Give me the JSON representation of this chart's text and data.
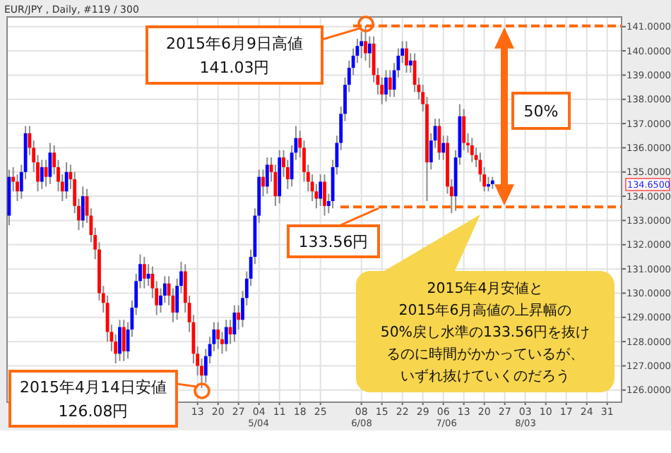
{
  "chart_data": {
    "type": "candlestick",
    "title": "EUR/JPY , Daily, #119 / 300",
    "categories": [
      null,
      null,
      null,
      null,
      null,
      null,
      null,
      null,
      null,
      null,
      null,
      null,
      null,
      null,
      null,
      null,
      null,
      null,
      null,
      null,
      null,
      null,
      null,
      null,
      null,
      null,
      null,
      null,
      null,
      null,
      null,
      null,
      null,
      null,
      null,
      null,
      null,
      null,
      null,
      null,
      null,
      null,
      null,
      null,
      null,
      null,
      "13",
      null,
      null,
      null,
      null,
      "20",
      null,
      null,
      null,
      null,
      "27",
      null,
      null,
      null,
      null,
      "04",
      null,
      null,
      null,
      null,
      "11",
      null,
      null,
      null,
      null,
      "18",
      null,
      null,
      null,
      null,
      "25",
      null,
      null,
      null,
      null,
      null,
      null,
      null,
      null,
      null,
      "08",
      null,
      null,
      null,
      null,
      "15",
      null,
      null,
      null,
      null,
      "22",
      null,
      null,
      null,
      null,
      "29",
      null,
      null,
      null,
      null,
      "06",
      null,
      null,
      null,
      null,
      "13",
      null,
      null,
      null,
      null,
      "20",
      null,
      null,
      null,
      null,
      "27",
      null,
      null,
      null,
      null,
      "03",
      null,
      null,
      null,
      null,
      "10",
      null,
      null,
      null,
      null,
      "17",
      null,
      null,
      null,
      null,
      "24",
      null,
      null,
      null,
      null,
      "31",
      null,
      null,
      null
    ],
    "ohlc": [
      [
        133.2,
        135.1,
        132.8,
        134.8
      ],
      [
        134.8,
        135.2,
        134.2,
        134.6
      ],
      [
        134.6,
        134.9,
        133.8,
        134.2
      ],
      [
        134.2,
        135.3,
        133.9,
        135.0
      ],
      [
        135.0,
        136.9,
        134.7,
        136.6
      ],
      [
        136.6,
        136.9,
        135.7,
        136.0
      ],
      [
        136.0,
        136.3,
        135.0,
        135.4
      ],
      [
        135.4,
        135.7,
        134.2,
        134.6
      ],
      [
        134.6,
        135.5,
        134.3,
        135.2
      ],
      [
        135.2,
        135.5,
        134.4,
        134.8
      ],
      [
        134.8,
        136.2,
        134.5,
        135.8
      ],
      [
        135.8,
        136.1,
        134.9,
        135.2
      ],
      [
        135.2,
        135.5,
        134.2,
        134.6
      ],
      [
        134.6,
        134.9,
        133.8,
        134.2
      ],
      [
        134.2,
        135.4,
        133.9,
        135.0
      ],
      [
        135.0,
        135.3,
        134.3,
        134.7
      ],
      [
        134.7,
        135.0,
        133.3,
        133.6
      ],
      [
        133.6,
        133.9,
        132.6,
        133.0
      ],
      [
        133.0,
        134.4,
        132.7,
        134.0
      ],
      [
        134.0,
        134.3,
        132.9,
        133.2
      ],
      [
        133.2,
        133.5,
        132.1,
        132.4
      ],
      [
        132.4,
        132.7,
        131.4,
        131.8
      ],
      [
        131.8,
        132.1,
        129.7,
        130.0
      ],
      [
        130.0,
        130.3,
        129.2,
        129.6
      ],
      [
        129.6,
        129.9,
        128.0,
        128.4
      ],
      [
        128.4,
        128.7,
        127.6,
        128.0
      ],
      [
        128.0,
        128.3,
        127.1,
        127.5
      ],
      [
        127.5,
        128.9,
        127.2,
        128.6
      ],
      [
        128.6,
        128.9,
        127.2,
        127.6
      ],
      [
        127.6,
        128.8,
        127.3,
        128.5
      ],
      [
        128.5,
        129.7,
        128.2,
        129.4
      ],
      [
        129.4,
        130.8,
        129.1,
        130.5
      ],
      [
        130.5,
        131.6,
        130.2,
        131.2
      ],
      [
        131.2,
        131.5,
        130.2,
        130.6
      ],
      [
        130.6,
        131.2,
        130.3,
        130.8
      ],
      [
        130.8,
        131.1,
        129.8,
        130.2
      ],
      [
        130.2,
        130.5,
        129.1,
        129.5
      ],
      [
        129.5,
        130.2,
        129.2,
        129.9
      ],
      [
        129.9,
        130.7,
        129.6,
        130.4
      ],
      [
        130.4,
        130.7,
        129.5,
        129.9
      ],
      [
        129.9,
        130.2,
        128.8,
        129.2
      ],
      [
        129.2,
        130.6,
        128.9,
        130.3
      ],
      [
        130.3,
        131.3,
        130.0,
        130.9
      ],
      [
        130.9,
        131.2,
        129.2,
        129.6
      ],
      [
        129.6,
        129.9,
        128.4,
        128.8
      ],
      [
        128.8,
        129.1,
        127.1,
        127.5
      ],
      [
        127.5,
        127.8,
        126.6,
        127.0
      ],
      [
        127.0,
        127.3,
        126.08,
        126.6
      ],
      [
        126.6,
        127.7,
        126.3,
        127.4
      ],
      [
        127.4,
        128.2,
        127.1,
        127.9
      ],
      [
        127.9,
        128.8,
        127.6,
        128.5
      ],
      [
        128.5,
        128.8,
        127.7,
        128.1
      ],
      [
        128.1,
        128.4,
        127.5,
        127.9
      ],
      [
        127.9,
        128.9,
        127.6,
        128.6
      ],
      [
        128.6,
        128.9,
        127.9,
        128.3
      ],
      [
        128.3,
        129.5,
        128.0,
        129.2
      ],
      [
        129.2,
        129.5,
        128.5,
        128.9
      ],
      [
        128.9,
        130.1,
        128.6,
        129.8
      ],
      [
        129.8,
        130.9,
        129.5,
        130.6
      ],
      [
        130.6,
        131.8,
        130.3,
        131.5
      ],
      [
        131.5,
        133.5,
        131.2,
        133.2
      ],
      [
        133.2,
        135.1,
        132.9,
        134.8
      ],
      [
        134.8,
        135.1,
        134.0,
        134.4
      ],
      [
        134.4,
        135.6,
        134.1,
        135.3
      ],
      [
        135.3,
        135.6,
        134.6,
        135.0
      ],
      [
        135.0,
        135.3,
        133.6,
        134.0
      ],
      [
        134.0,
        135.9,
        133.7,
        135.6
      ],
      [
        135.6,
        135.9,
        134.8,
        135.2
      ],
      [
        135.2,
        135.5,
        134.3,
        134.7
      ],
      [
        134.7,
        136.1,
        134.4,
        135.8
      ],
      [
        135.8,
        136.9,
        135.5,
        136.4
      ],
      [
        136.4,
        136.7,
        135.6,
        136.0
      ],
      [
        136.0,
        136.3,
        134.6,
        135.0
      ],
      [
        135.0,
        135.3,
        134.2,
        134.6
      ],
      [
        134.6,
        134.9,
        133.8,
        134.2
      ],
      [
        134.2,
        134.5,
        133.5,
        133.9
      ],
      [
        133.9,
        134.9,
        133.6,
        134.6
      ],
      [
        134.6,
        134.9,
        133.2,
        133.6
      ],
      [
        133.6,
        134.1,
        133.3,
        133.8
      ],
      [
        133.8,
        135.5,
        133.5,
        135.2
      ],
      [
        135.2,
        136.5,
        134.9,
        136.2
      ],
      [
        136.2,
        137.7,
        135.9,
        137.4
      ],
      [
        137.4,
        138.9,
        137.1,
        138.6
      ],
      [
        138.6,
        139.6,
        138.3,
        139.3
      ],
      [
        139.3,
        140.1,
        139.0,
        139.8
      ],
      [
        139.8,
        140.5,
        139.5,
        140.2
      ],
      [
        140.2,
        140.8,
        139.7,
        140.4
      ],
      [
        140.4,
        141.03,
        139.6,
        139.9
      ],
      [
        139.9,
        140.6,
        139.3,
        140.3
      ],
      [
        140.3,
        140.6,
        138.7,
        139.0
      ],
      [
        139.0,
        139.3,
        138.2,
        138.6
      ],
      [
        138.6,
        138.9,
        137.8,
        138.2
      ],
      [
        138.2,
        139.2,
        137.9,
        138.9
      ],
      [
        138.9,
        139.2,
        138.1,
        138.4
      ],
      [
        138.4,
        139.5,
        138.1,
        139.2
      ],
      [
        139.2,
        140.1,
        138.9,
        139.8
      ],
      [
        139.8,
        140.4,
        139.5,
        140.1
      ],
      [
        140.1,
        140.4,
        139.1,
        139.4
      ],
      [
        139.4,
        139.9,
        139.1,
        139.6
      ],
      [
        139.6,
        139.9,
        138.3,
        138.6
      ],
      [
        138.6,
        138.9,
        138.0,
        138.3
      ],
      [
        138.3,
        138.6,
        137.5,
        137.8
      ],
      [
        137.8,
        138.1,
        133.8,
        135.4
      ],
      [
        135.4,
        136.6,
        135.1,
        136.3
      ],
      [
        136.3,
        137.2,
        136.0,
        136.9
      ],
      [
        136.9,
        137.2,
        135.5,
        135.8
      ],
      [
        135.8,
        136.5,
        135.5,
        136.2
      ],
      [
        136.2,
        136.5,
        134.1,
        134.4
      ],
      [
        134.4,
        134.7,
        133.3,
        134.0
      ],
      [
        134.0,
        135.9,
        133.4,
        135.6
      ],
      [
        135.6,
        137.8,
        135.3,
        137.3
      ],
      [
        137.3,
        137.6,
        135.9,
        136.2
      ],
      [
        136.2,
        136.6,
        135.8,
        136.1
      ],
      [
        136.1,
        136.4,
        135.4,
        135.7
      ],
      [
        135.7,
        136.0,
        135.2,
        135.5
      ],
      [
        135.5,
        135.8,
        134.6,
        134.9
      ],
      [
        134.9,
        135.2,
        134.2,
        134.4
      ],
      [
        134.4,
        134.8,
        134.2,
        134.5
      ],
      [
        134.5,
        134.8,
        134.3,
        134.65
      ],
      null,
      null,
      null,
      null,
      null,
      null,
      null,
      null,
      null,
      null,
      null,
      null,
      null,
      null,
      null,
      null,
      null,
      null,
      null,
      null,
      null,
      null,
      null,
      null,
      null,
      null,
      null,
      null,
      null,
      null,
      null
    ],
    "colors": [
      "#0000ff",
      "#ff0000",
      "#ff0000",
      "#0000ff",
      "#0000ff",
      "#ff0000",
      "#ff0000",
      "#ff0000",
      "#0000ff",
      "#ff0000",
      "#0000ff",
      "#ff0000",
      "#ff0000",
      "#ff0000",
      "#0000ff",
      "#ff0000",
      "#ff0000",
      "#ff0000",
      "#0000ff",
      "#ff0000",
      "#ff0000",
      "#ff0000",
      "#ff0000",
      "#ff0000",
      "#ff0000",
      "#ff0000",
      "#ff0000",
      "#0000ff",
      "#ff0000",
      "#0000ff",
      "#0000ff",
      "#0000ff",
      "#0000ff",
      "#ff0000",
      "#0000ff",
      "#ff0000",
      "#ff0000",
      "#0000ff",
      "#0000ff",
      "#ff0000",
      "#ff0000",
      "#0000ff",
      "#0000ff",
      "#ff0000",
      "#ff0000",
      "#ff0000",
      "#ff0000",
      "#ff0000",
      "#0000ff",
      "#0000ff",
      "#0000ff",
      "#ff0000",
      "#ff0000",
      "#0000ff",
      "#ff0000",
      "#0000ff",
      "#ff0000",
      "#0000ff",
      "#0000ff",
      "#0000ff",
      "#0000ff",
      "#0000ff",
      "#ff0000",
      "#0000ff",
      "#ff0000",
      "#ff0000",
      "#0000ff",
      "#ff0000",
      "#ff0000",
      "#0000ff",
      "#0000ff",
      "#ff0000",
      "#ff0000",
      "#ff0000",
      "#ff0000",
      "#ff0000",
      "#0000ff",
      "#ff0000",
      "#0000ff",
      "#0000ff",
      "#0000ff",
      "#0000ff",
      "#0000ff",
      "#0000ff",
      "#0000ff",
      "#0000ff",
      "#0000ff",
      "#ff0000",
      "#0000ff",
      "#ff0000",
      "#ff0000",
      "#ff0000",
      "#0000ff",
      "#ff0000",
      "#0000ff",
      "#0000ff",
      "#0000ff",
      "#ff0000",
      "#0000ff",
      "#ff0000",
      "#ff0000",
      "#ff0000",
      "#ff0000",
      "#0000ff",
      "#0000ff",
      "#ff0000",
      "#0000ff",
      "#ff0000",
      "#ff0000",
      "#0000ff",
      "#0000ff",
      "#ff0000",
      "#ff0000",
      "#ff0000",
      "#ff0000",
      "#ff0000",
      "#ff0000",
      "#0000ff",
      "#0000ff",
      null,
      null,
      null,
      null,
      null,
      null,
      null,
      null,
      null,
      null,
      null,
      null,
      null,
      null,
      null,
      null,
      null,
      null,
      null,
      null,
      null,
      null,
      null,
      null,
      null,
      null,
      null,
      null,
      null,
      null,
      null
    ],
    "ylim": [
      125.5,
      141.4
    ],
    "yticks": [
      {
        "value": 126,
        "label": "126.0000"
      },
      {
        "value": 127,
        "label": "127.0000"
      },
      {
        "value": 128,
        "label": "128.0000"
      },
      {
        "value": 129,
        "label": "129.0000"
      },
      {
        "value": 130,
        "label": "130.0000"
      },
      {
        "value": 131,
        "label": "131.0000"
      },
      {
        "value": 132,
        "label": "132.0000"
      },
      {
        "value": 133,
        "label": "133.0000"
      },
      {
        "value": 134,
        "label": "134.0000"
      },
      {
        "value": 135,
        "label": "135.0000"
      },
      {
        "value": 136,
        "label": "136.0000"
      },
      {
        "value": 137,
        "label": "137.0000"
      },
      {
        "value": 138,
        "label": "138.0000"
      },
      {
        "value": 139,
        "label": "139.0000"
      },
      {
        "value": 140,
        "label": "140.0000"
      },
      {
        "value": 141,
        "label": "141.0000"
      }
    ],
    "grid": true,
    "ref_lines": [
      {
        "axis": "y",
        "value": 141.03,
        "color": "#ff6600",
        "line_style": "dashed"
      },
      {
        "axis": "y",
        "value": 133.56,
        "color": "#ff6600",
        "line_style": "dashed"
      }
    ],
    "annotations": [
      "2015年6月9日高値\n141.03円",
      {
        "text": "133.56円",
        "y": 133.56
      },
      "2015年4月14日安値\n126.08円",
      "2015年4月安値と\n2015年6月高値の上昇幅の\n50%戻し水準の133.56円を抜けるのに時間がかかっているが、いずれ抜けていくのだろう",
      "50%",
      "134.6500",
      "5/04",
      "6/08",
      "7/06",
      "8/03"
    ]
  }
}
